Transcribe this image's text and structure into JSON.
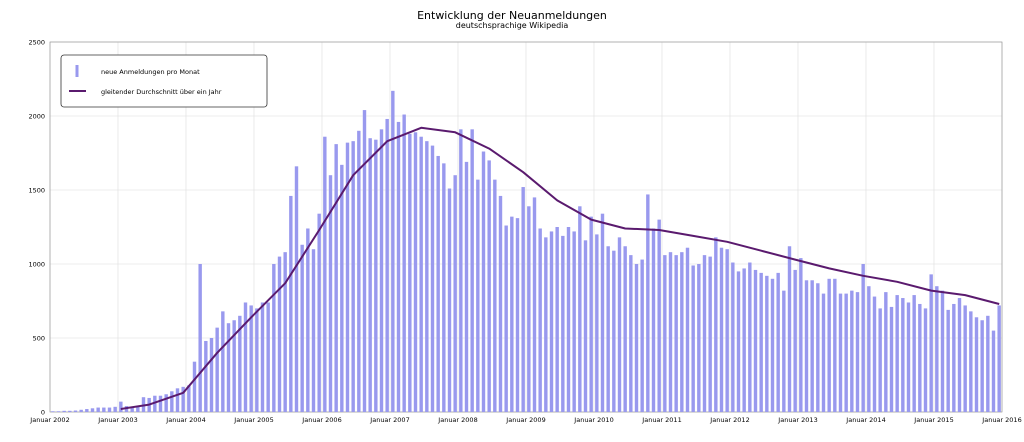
{
  "chart_data": {
    "type": "bar",
    "title": "Entwicklung der Neuanmeldungen",
    "subtitle": "deutschsprachige Wikipedia",
    "xlabel": "",
    "ylabel": "",
    "ylim": [
      0,
      2500
    ],
    "yticks": [
      "0",
      "500",
      "1000",
      "1500",
      "2000",
      "2500"
    ],
    "xticks": [
      "Januar 2002",
      "Januar 2003",
      "Januar 2004",
      "Januar 2005",
      "Januar 2006",
      "Januar 2007",
      "Januar 2008",
      "Januar 2009",
      "Januar 2010",
      "Januar 2011",
      "Januar 2012",
      "Januar 2013",
      "Januar 2014",
      "Januar 2015",
      "Januar 2016"
    ],
    "grid": true,
    "legend_position": "top-left",
    "colors": {
      "bars": "#9999ee",
      "line": "#5a1a6e"
    },
    "series": [
      {
        "name": "neue Anmeldungen pro Monat",
        "type": "bar",
        "start": "2002-01",
        "values": [
          5,
          5,
          8,
          8,
          10,
          15,
          20,
          25,
          30,
          30,
          30,
          35,
          70,
          40,
          35,
          40,
          100,
          95,
          110,
          110,
          120,
          140,
          160,
          170,
          180,
          340,
          1000,
          480,
          500,
          570,
          680,
          600,
          620,
          650,
          740,
          720,
          700,
          740,
          740,
          1000,
          1050,
          1080,
          1460,
          1660,
          1130,
          1240,
          1100,
          1340,
          1860,
          1600,
          1810,
          1670,
          1820,
          1830,
          1900,
          2040,
          1850,
          1840,
          1910,
          1980,
          2170,
          1960,
          2010,
          1880,
          1890,
          1860,
          1830,
          1800,
          1730,
          1680,
          1510,
          1600,
          1910,
          1690,
          1910,
          1570,
          1760,
          1700,
          1570,
          1460,
          1260,
          1320,
          1310,
          1520,
          1390,
          1450,
          1240,
          1180,
          1220,
          1250,
          1190,
          1250,
          1220,
          1390,
          1160,
          1320,
          1200,
          1340,
          1120,
          1090,
          1180,
          1120,
          1060,
          1000,
          1030,
          1470,
          1240,
          1300,
          1060,
          1080,
          1060,
          1080,
          1110,
          990,
          1000,
          1060,
          1050,
          1180,
          1110,
          1100,
          1010,
          950,
          970,
          1010,
          960,
          940,
          920,
          900,
          940,
          820,
          1120,
          960,
          1040,
          890,
          890,
          870,
          800,
          900,
          900,
          800,
          800,
          820,
          810,
          1000,
          850,
          780,
          700,
          810,
          710,
          790,
          770,
          740,
          790,
          730,
          700,
          930,
          850,
          820,
          690,
          730,
          770,
          720,
          680,
          640,
          620,
          650,
          550,
          720
        ],
        "partial_to": "2015-12"
      },
      {
        "name": "gleitender Durchschnitt über ein Jahr",
        "type": "line",
        "x": [
          "2003-01",
          "2003-06",
          "2003-12",
          "2004-06",
          "2004-12",
          "2005-06",
          "2005-12",
          "2006-06",
          "2006-12",
          "2007-06",
          "2007-12",
          "2008-06",
          "2008-12",
          "2009-06",
          "2009-12",
          "2010-06",
          "2010-12",
          "2011-06",
          "2011-12",
          "2012-06",
          "2012-12",
          "2013-06",
          "2013-12",
          "2014-06",
          "2014-12",
          "2015-06",
          "2015-12"
        ],
        "values": [
          20,
          50,
          130,
          400,
          640,
          870,
          1230,
          1600,
          1830,
          1920,
          1890,
          1780,
          1620,
          1430,
          1300,
          1240,
          1230,
          1190,
          1150,
          1090,
          1030,
          970,
          920,
          880,
          820,
          790,
          730
        ]
      }
    ]
  }
}
